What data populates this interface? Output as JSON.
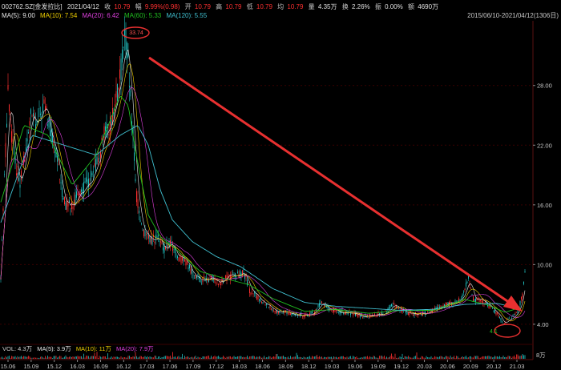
{
  "header": {
    "code": "002762.SZ[金发拉比]",
    "date": "2021/04/12",
    "close_label": "收",
    "close": "10.79",
    "change_label": "幅",
    "change": "9.99%(0.98)",
    "open_label": "开",
    "open": "10.79",
    "high_label": "高",
    "high": "10.79",
    "low_label": "低",
    "low": "10.79",
    "avg_label": "均",
    "avg": "10.79",
    "volume_label": "量",
    "volume": "4.35万",
    "turnover_label": "换",
    "turnover": "2.26%",
    "amplitude_label": "振",
    "amplitude": "0.00%",
    "amount_label": "额",
    "amount": "4690万"
  },
  "ma_legend": [
    {
      "label": "MA(5): 9.00",
      "color": "#e8e8e8"
    },
    {
      "label": "MA(10): 7.54",
      "color": "#f0d000"
    },
    {
      "label": "MA(20): 6.42",
      "color": "#e040e0"
    },
    {
      "label": "MA(60): 5.33",
      "color": "#20c020"
    },
    {
      "label": "MA(120): 5.55",
      "color": "#40c0d0"
    }
  ],
  "range_label": "2015/06/10-2021/04/12(1306日)",
  "annotations": {
    "peak_value": "33.74",
    "low_value": "4.1"
  },
  "volume_legend": [
    {
      "label": "VOL: 4.3万",
      "color": "#d0d0d0"
    },
    {
      "label": "MA(5): 3.9万",
      "color": "#e8e8e8"
    },
    {
      "label": "MA(10): 11万",
      "color": "#f0d000"
    },
    {
      "label": "MA(20): 7.9万",
      "color": "#e040e0"
    }
  ],
  "volume_axis_label": "8万",
  "colors": {
    "up": "#ff3030",
    "down": "#20c0c0",
    "arrow": "#e83030",
    "grid": "#3a0000",
    "axis_text": "#c8c8c8"
  },
  "chart_data": {
    "type": "candlestick",
    "y_ticks": [
      4.0,
      10.0,
      16.0,
      22.0,
      28.0
    ],
    "y_tick_labels": [
      "4.00",
      "10.00",
      "16.00",
      "22.00",
      "28.00"
    ],
    "ylim": [
      2.3,
      34.5
    ],
    "x_tick_labels": [
      "15.06",
      "15.09",
      "15.12",
      "16.03",
      "16.09",
      "16.12",
      "17.03",
      "17.06",
      "17.09",
      "17.12",
      "18.03",
      "18.06",
      "18.09",
      "18.12",
      "19.03",
      "19.06",
      "19.09",
      "19.12",
      "20.03",
      "20.06",
      "20.09",
      "20.12",
      "21.03"
    ],
    "price_path": [
      [
        0,
        6
      ],
      [
        4,
        16
      ],
      [
        10,
        27
      ],
      [
        16,
        22
      ],
      [
        24,
        18
      ],
      [
        32,
        21
      ],
      [
        38,
        25
      ],
      [
        46,
        24
      ],
      [
        54,
        26
      ],
      [
        62,
        24
      ],
      [
        70,
        21
      ],
      [
        76,
        18
      ],
      [
        82,
        16
      ],
      [
        90,
        16
      ],
      [
        98,
        17
      ],
      [
        106,
        18
      ],
      [
        116,
        19
      ],
      [
        124,
        21
      ],
      [
        130,
        23
      ],
      [
        138,
        24
      ],
      [
        144,
        26
      ],
      [
        150,
        29
      ],
      [
        156,
        33.5
      ],
      [
        160,
        30
      ],
      [
        166,
        23
      ],
      [
        170,
        17
      ],
      [
        174,
        15
      ],
      [
        180,
        13
      ],
      [
        188,
        12.4
      ],
      [
        196,
        12.8
      ],
      [
        204,
        11.5
      ],
      [
        212,
        12.2
      ],
      [
        222,
        10.8
      ],
      [
        232,
        10.2
      ],
      [
        242,
        9.0
      ],
      [
        252,
        8.4
      ],
      [
        264,
        8.6
      ],
      [
        274,
        8.2
      ],
      [
        284,
        8.7
      ],
      [
        294,
        8.9
      ],
      [
        304,
        9.3
      ],
      [
        312,
        7.3
      ],
      [
        322,
        6.6
      ],
      [
        334,
        6.0
      ],
      [
        344,
        5.3
      ],
      [
        356,
        5.2
      ],
      [
        368,
        5.0
      ],
      [
        380,
        4.9
      ],
      [
        392,
        5.1
      ],
      [
        400,
        6.2
      ],
      [
        410,
        5.6
      ],
      [
        420,
        5.3
      ],
      [
        432,
        5.2
      ],
      [
        444,
        5.0
      ],
      [
        456,
        4.8
      ],
      [
        468,
        4.9
      ],
      [
        480,
        5.1
      ],
      [
        490,
        6.1
      ],
      [
        500,
        5.4
      ],
      [
        512,
        5.1
      ],
      [
        524,
        5.0
      ],
      [
        536,
        5.2
      ],
      [
        548,
        5.7
      ],
      [
        560,
        6.0
      ],
      [
        570,
        6.2
      ],
      [
        578,
        6.9
      ],
      [
        584,
        8.7
      ],
      [
        590,
        6.6
      ],
      [
        598,
        6.4
      ],
      [
        608,
        6.0
      ],
      [
        618,
        5.3
      ],
      [
        628,
        4.1
      ],
      [
        638,
        4.6
      ],
      [
        646,
        5.3
      ],
      [
        652,
        6.9
      ],
      [
        656,
        9.8
      ]
    ],
    "moving_averages": [
      {
        "name": "MA(60)",
        "path": [
          [
            0,
            16
          ],
          [
            30,
            24
          ],
          [
            60,
            23
          ],
          [
            90,
            18
          ],
          [
            120,
            21
          ],
          [
            150,
            27
          ],
          [
            160,
            26
          ],
          [
            170,
            21
          ],
          [
            185,
            15
          ],
          [
            200,
            12.8
          ],
          [
            220,
            11.5
          ],
          [
            250,
            9.3
          ],
          [
            280,
            8.6
          ],
          [
            310,
            8.0
          ],
          [
            340,
            6.6
          ],
          [
            380,
            5.3
          ],
          [
            420,
            5.5
          ],
          [
            460,
            5.1
          ],
          [
            500,
            5.4
          ],
          [
            540,
            5.4
          ],
          [
            580,
            6.5
          ],
          [
            610,
            5.9
          ],
          [
            630,
            5.2
          ],
          [
            650,
            5.7
          ]
        ]
      },
      {
        "name": "MA(120)",
        "path": [
          [
            0,
            14
          ],
          [
            40,
            23
          ],
          [
            80,
            22
          ],
          [
            120,
            21
          ],
          [
            150,
            23
          ],
          [
            172,
            24
          ],
          [
            185,
            22
          ],
          [
            200,
            17.5
          ],
          [
            215,
            14.5
          ],
          [
            240,
            12.3
          ],
          [
            270,
            10.8
          ],
          [
            300,
            9.8
          ],
          [
            340,
            7.6
          ],
          [
            380,
            6.2
          ],
          [
            420,
            5.8
          ],
          [
            460,
            5.6
          ],
          [
            500,
            5.4
          ],
          [
            540,
            5.5
          ],
          [
            580,
            6.0
          ],
          [
            620,
            6.1
          ],
          [
            650,
            5.55
          ]
        ]
      }
    ]
  }
}
